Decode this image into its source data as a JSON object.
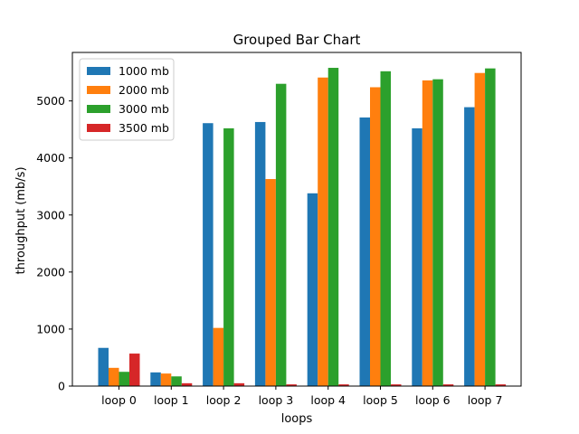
{
  "chart_data": {
    "type": "bar",
    "title": "Grouped Bar Chart",
    "xlabel": "loops",
    "ylabel": "throughput (mb/s)",
    "categories": [
      "loop 0",
      "loop 1",
      "loop 2",
      "loop 3",
      "loop 4",
      "loop 5",
      "loop 6",
      "loop 7"
    ],
    "ylim": [
      0,
      5850
    ],
    "yticks": [
      0,
      1000,
      2000,
      3000,
      4000,
      5000
    ],
    "grid": false,
    "legend_position": "top-left",
    "series": [
      {
        "name": "1000 mb",
        "color": "#1f77b4",
        "values": [
          670,
          240,
          4610,
          4630,
          3380,
          4710,
          4520,
          4890
        ]
      },
      {
        "name": "2000 mb",
        "color": "#ff7f0e",
        "values": [
          320,
          220,
          1020,
          3630,
          5410,
          5240,
          5360,
          5490
        ]
      },
      {
        "name": "3000 mb",
        "color": "#2ca02c",
        "values": [
          250,
          170,
          4520,
          5300,
          5580,
          5520,
          5380,
          5570
        ]
      },
      {
        "name": "3500 mb",
        "color": "#d62728",
        "values": [
          570,
          50,
          50,
          30,
          30,
          30,
          30,
          30
        ]
      }
    ]
  }
}
